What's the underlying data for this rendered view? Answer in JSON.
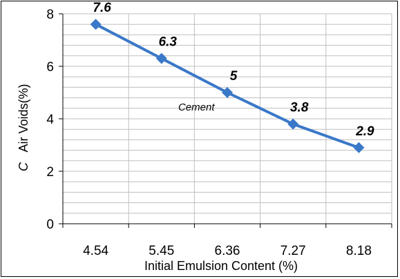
{
  "chart_data": {
    "type": "line",
    "title": "",
    "xlabel": "Initial Emulsion Content (%)",
    "ylabel": "Air Voids(%)",
    "ylabel_prefix": "C",
    "categories": [
      "4.54",
      "5.45",
      "6.36",
      "7.27",
      "8.18"
    ],
    "series": [
      {
        "values": [
          7.6,
          6.3,
          5,
          3.8,
          2.9
        ],
        "data_labels": [
          "7.6",
          "6.3",
          "5",
          "3.8",
          "2.9"
        ]
      }
    ],
    "y_ticks": [
      "0",
      "2",
      "4",
      "6",
      "8"
    ],
    "ylim": [
      0,
      8
    ],
    "annotation": "Cement",
    "grid": true,
    "legend": "none",
    "colors": {
      "series": "#3a78c8",
      "grid": "#bfbfbf",
      "axis": "#000000"
    }
  }
}
